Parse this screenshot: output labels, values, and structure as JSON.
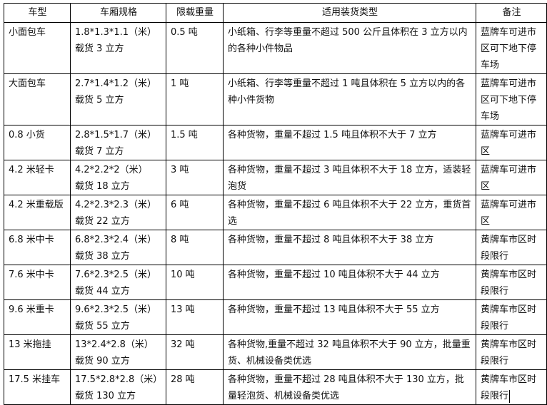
{
  "headers": [
    "车型",
    "车厢规格",
    "限载重量",
    "适用装货类型",
    "备注"
  ],
  "rows": [
    {
      "type": "小面包车",
      "spec": "1.8*1.3*1.1（米）载货 3 立方",
      "load": "0.5 吨",
      "goods": "小纸箱、行李等重量不超过 500 公斤且体积在 3 立方以内的各种小件物品",
      "note": "蓝牌车可进市区可下地下停车场"
    },
    {
      "type": "大面包车",
      "spec": "2.7*1.4*1.2（米）载货 5 立方",
      "load": "1 吨",
      "goods": "小纸箱、行李等重量不超过 1 吨且体积在 5 立方以内的各种小件货物",
      "note": "蓝牌车可进市区可下地下停车场"
    },
    {
      "type": "0.8 小货",
      "spec": "2.8*1.5*1.7（米）载货 7 立方",
      "load": "1.5 吨",
      "goods": "各种货物，重量不超过 1.5 吨且体积不大于 7 立方",
      "note": "蓝牌车可进市区"
    },
    {
      "type": "4.2 米轻卡",
      "spec": "4.2*2.2*2（米）载货 18 立方",
      "load": "3 吨",
      "goods": "各种货物，重量不超过 3 吨且体积不大于 18 立方，适装轻泡货",
      "note": "蓝牌车可进市区"
    },
    {
      "type": "4.2 米重载版",
      "spec": "4.2*2.3*2.3（米）载货 22 立方",
      "load": "6 吨",
      "goods": "各种货物，重量不超过 6 吨且体积不大于 22 立方，重货首选",
      "note": "蓝牌车可进市区"
    },
    {
      "type": "6.8 米中卡",
      "spec": "6.8*2.3*2.4（米）载货 38 立方",
      "load": "8 吨",
      "goods": "各种货物，重量不超过 8 吨且体积不大于 38 立方",
      "note": "黄牌车市区时段限行"
    },
    {
      "type": "7.6 米中卡",
      "spec": "7.6*2.3*2.5（米）载货 44 立方",
      "load": "10 吨",
      "goods": "各种货物，重量不超过 10 吨且体积不大于 44 立方",
      "note": "黄牌车市区时段限行"
    },
    {
      "type": "9.6 米重卡",
      "spec": "9.6*2.3*2.5（米）载货 55 立方",
      "load": "13 吨",
      "goods": "各种货物，重量不超过 13 吨且体积不大于 55 立方",
      "note": "黄牌车市区时段限行"
    },
    {
      "type": "13 米拖挂",
      "spec": "13*2.4*2.8（米）载货 90 立方",
      "load": "32 吨",
      "goods": "各种货物,重量不超过 32 吨且体积不大于 90 立方，批量重货、机械设备类优选",
      "note": "黄牌车市区时段限行"
    },
    {
      "type": "17.5 米挂车",
      "spec": "17.5*2.8*2.8（米）载货 130 立方",
      "load": "28 吨",
      "goods": "各种货物，重量不超过 28 吨且体积不大于 130 立方，批量轻泡货、机械设备类优选",
      "note": "黄牌车市区时段限行"
    }
  ]
}
